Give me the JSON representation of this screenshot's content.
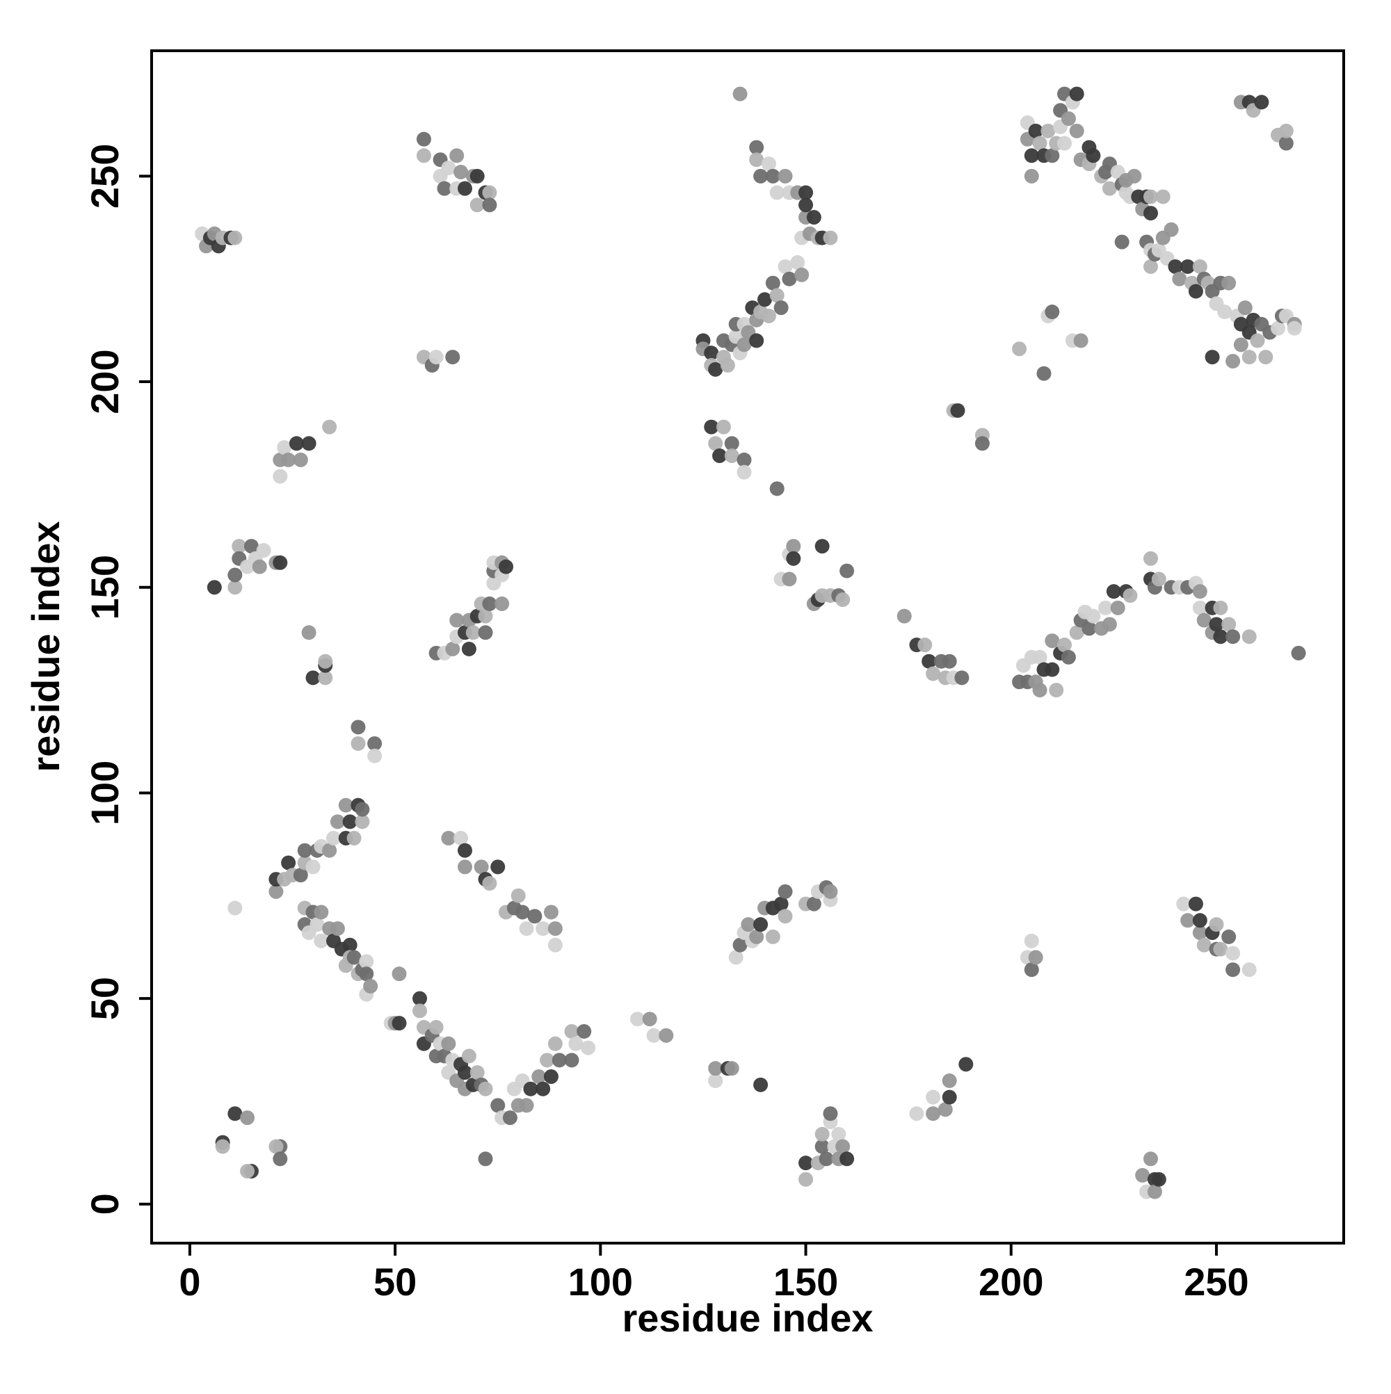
{
  "chart_data": {
    "type": "scatter",
    "x_label": "residue index",
    "y_label": "residue index",
    "xlim": [
      -9.3,
      281
    ],
    "ylim": [
      -9.5,
      280.5
    ],
    "xticks": [
      0,
      50,
      100,
      150,
      200,
      250
    ],
    "yticks": [
      0,
      50,
      100,
      150,
      200,
      250
    ],
    "grid": false,
    "series": [
      {
        "colors": [
          "#d2d2d2",
          "#b3b3b3",
          "#969696",
          "#6e6e6e",
          "#3a3a3a"
        ],
        "x": [
          3,
          4,
          5,
          6,
          7,
          8,
          10,
          11,
          57,
          57,
          61,
          61,
          62,
          63,
          65,
          65,
          66,
          67,
          69,
          70,
          70,
          72,
          73,
          73,
          57,
          59,
          60,
          64,
          22,
          22,
          23,
          24,
          26,
          27,
          29,
          34,
          6,
          11,
          11,
          12,
          12,
          14,
          15,
          16,
          17,
          18,
          21,
          22,
          29,
          30,
          33,
          33,
          33,
          41,
          41,
          45,
          45,
          60,
          62,
          64,
          65,
          65,
          67,
          68,
          68,
          69,
          70,
          71,
          72,
          72,
          73,
          74,
          74,
          74,
          76,
          76,
          76,
          77,
          21,
          21,
          23,
          24,
          25,
          27,
          28,
          28,
          30,
          31,
          32,
          34,
          35,
          36,
          38,
          38,
          39,
          40,
          41,
          42,
          42,
          28,
          28,
          29,
          30,
          31,
          32,
          32,
          34,
          35,
          36,
          37,
          38,
          39,
          39,
          40,
          41,
          42,
          43,
          43,
          43,
          44,
          49,
          50,
          51,
          51,
          56,
          56,
          57,
          57,
          59,
          60,
          60,
          61,
          62,
          63,
          63,
          64,
          65,
          66,
          67,
          67,
          68,
          69,
          70,
          71,
          72,
          75,
          76,
          78,
          79,
          80,
          81,
          82,
          83,
          85,
          86,
          87,
          88,
          89,
          90,
          93,
          93,
          94,
          96,
          97,
          63,
          66,
          67,
          67,
          71,
          72,
          73,
          75,
          77,
          79,
          80,
          81,
          82,
          84,
          86,
          88,
          89,
          89,
          11,
          14,
          8,
          8,
          15,
          14,
          22,
          21,
          22,
          11,
          72,
          109,
          112,
          113,
          116,
          125,
          125,
          127,
          127,
          128,
          130,
          130,
          131,
          132,
          133,
          133,
          134,
          135,
          135,
          136,
          137,
          138,
          138,
          139,
          140,
          141,
          142,
          143,
          144,
          145,
          146,
          148,
          149,
          149,
          150,
          150,
          151,
          152,
          153,
          154,
          156,
          138,
          138,
          139,
          141,
          142,
          143,
          145,
          146,
          148,
          150,
          134,
          127,
          128,
          129,
          130,
          132,
          132,
          135,
          135,
          143,
          144,
          146,
          146,
          147,
          147,
          152,
          153,
          154,
          154,
          156,
          158,
          159,
          160,
          133,
          134,
          135,
          136,
          137,
          138,
          139,
          140,
          142,
          142,
          144,
          145,
          145,
          150,
          152,
          153,
          155,
          156,
          156,
          128,
          128,
          131,
          132,
          139,
          150,
          150,
          153,
          154,
          154,
          155,
          156,
          156,
          157,
          158,
          158,
          159,
          160,
          174,
          177,
          179,
          180,
          181,
          183,
          184,
          185,
          186,
          188,
          177,
          181,
          181,
          184,
          185,
          185,
          189,
          186,
          187,
          193,
          193,
          202,
          208,
          209,
          210,
          215,
          217,
          204,
          204,
          205,
          205,
          206,
          207,
          208,
          209,
          210,
          211,
          212,
          212,
          213,
          213,
          214,
          215,
          216,
          216,
          217,
          219,
          219,
          220,
          222,
          223,
          224,
          224,
          226,
          227,
          228,
          228,
          229,
          230,
          231,
          232,
          233,
          234,
          234,
          237,
          227,
          234,
          233,
          234,
          235,
          236,
          237,
          238,
          239,
          240,
          241,
          243,
          244,
          245,
          246,
          247,
          248,
          249,
          250,
          251,
          252,
          253,
          255,
          256,
          256,
          257,
          258,
          258,
          259,
          260,
          261,
          262,
          263,
          265,
          266,
          267,
          269,
          269,
          254,
          249,
          256,
          258,
          259,
          261,
          265,
          267,
          267,
          202,
          203,
          204,
          205,
          206,
          207,
          207,
          208,
          210,
          210,
          211,
          212,
          213,
          214,
          216,
          217,
          218,
          219,
          220,
          222,
          223,
          224,
          225,
          226,
          228,
          229,
          234,
          234,
          235,
          236,
          239,
          241,
          243,
          245,
          246,
          246,
          247,
          249,
          249,
          250,
          251,
          251,
          253,
          254,
          258,
          270,
          204,
          205,
          205,
          206,
          242,
          243,
          245,
          246,
          246,
          247,
          249,
          250,
          250,
          251,
          253,
          254,
          254,
          258,
          232,
          233,
          234,
          235,
          235,
          236
        ],
        "values": [
          236,
          233,
          235,
          236,
          233,
          235,
          235,
          235,
          259,
          255,
          254,
          250,
          247,
          252,
          255,
          247,
          251,
          247,
          250,
          250,
          243,
          246,
          246,
          243,
          206,
          204,
          206,
          206,
          177,
          181,
          184,
          181,
          185,
          181,
          185,
          189,
          150,
          150,
          153,
          160,
          157,
          155,
          160,
          157,
          155,
          159,
          156,
          156,
          139,
          128,
          128,
          131,
          132,
          116,
          112,
          112,
          109,
          134,
          134,
          135,
          138,
          142,
          139,
          142,
          135,
          139,
          143,
          146,
          139,
          143,
          146,
          151,
          154,
          156,
          156,
          153,
          146,
          155,
          76,
          79,
          79,
          83,
          80,
          80,
          83,
          86,
          82,
          86,
          87,
          86,
          89,
          93,
          89,
          97,
          93,
          89,
          97,
          93,
          96,
          72,
          68,
          66,
          71,
          68,
          71,
          64,
          67,
          64,
          67,
          62,
          58,
          63,
          60,
          60,
          56,
          57,
          59,
          56,
          51,
          53,
          44,
          44,
          44,
          56,
          50,
          47,
          39,
          43,
          41,
          43,
          36,
          39,
          36,
          32,
          39,
          35,
          30,
          34,
          28,
          32,
          36,
          29,
          32,
          29,
          28,
          24,
          21,
          21,
          28,
          24,
          30,
          24,
          28,
          31,
          28,
          35,
          31,
          39,
          35,
          42,
          35,
          39,
          42,
          38,
          89,
          89,
          82,
          86,
          82,
          79,
          78,
          82,
          71,
          72,
          75,
          71,
          67,
          70,
          67,
          71,
          63,
          67,
          22,
          21,
          15,
          14,
          8,
          8,
          14,
          14,
          11,
          72,
          11,
          45,
          45,
          41,
          41,
          210,
          208,
          207,
          204,
          203,
          206,
          210,
          204,
          209,
          211,
          214,
          207,
          209,
          214,
          212,
          218,
          215,
          210,
          217,
          220,
          216,
          224,
          221,
          218,
          228,
          225,
          229,
          226,
          235,
          240,
          243,
          236,
          240,
          235,
          235,
          235,
          257,
          254,
          250,
          253,
          250,
          246,
          250,
          246,
          246,
          246,
          270,
          189,
          185,
          182,
          189,
          185,
          182,
          181,
          178,
          174,
          152,
          152,
          158,
          160,
          157,
          146,
          147,
          148,
          160,
          148,
          148,
          147,
          154,
          60,
          63,
          66,
          68,
          64,
          65,
          68,
          72,
          72,
          65,
          73,
          70,
          76,
          73,
          73,
          76,
          77,
          74,
          76,
          30,
          33,
          33,
          33,
          29,
          6,
          10,
          10,
          14,
          17,
          11,
          20,
          22,
          14,
          11,
          17,
          14,
          11,
          143,
          136,
          136,
          132,
          129,
          132,
          128,
          132,
          128,
          128,
          22,
          22,
          26,
          23,
          26,
          30,
          34,
          193,
          193,
          187,
          185,
          208,
          202,
          216,
          217,
          210,
          210,
          263,
          259,
          255,
          250,
          261,
          258,
          255,
          261,
          255,
          258,
          266,
          262,
          270,
          258,
          264,
          268,
          261,
          270,
          254,
          257,
          253,
          255,
          250,
          251,
          247,
          253,
          251,
          248,
          246,
          249,
          245,
          250,
          245,
          242,
          245,
          245,
          241,
          245,
          234,
          228,
          234,
          232,
          231,
          232,
          235,
          230,
          237,
          228,
          225,
          228,
          224,
          222,
          228,
          225,
          224,
          222,
          219,
          224,
          217,
          224,
          216,
          209,
          214,
          218,
          212,
          206,
          215,
          210,
          214,
          206,
          212,
          213,
          216,
          216,
          214,
          213,
          205,
          206,
          268,
          268,
          266,
          268,
          260,
          258,
          261,
          127,
          131,
          127,
          133,
          127,
          133,
          125,
          130,
          137,
          130,
          125,
          134,
          136,
          133,
          139,
          142,
          144,
          140,
          143,
          140,
          145,
          141,
          149,
          145,
          149,
          148,
          152,
          157,
          150,
          152,
          150,
          150,
          150,
          151,
          149,
          145,
          142,
          145,
          139,
          141,
          145,
          138,
          141,
          138,
          138,
          134,
          60,
          57,
          64,
          60,
          73,
          69,
          73,
          66,
          69,
          63,
          66,
          68,
          62,
          62,
          65,
          61,
          57,
          57,
          7,
          3,
          11,
          6,
          3,
          6
        ]
      }
    ]
  }
}
